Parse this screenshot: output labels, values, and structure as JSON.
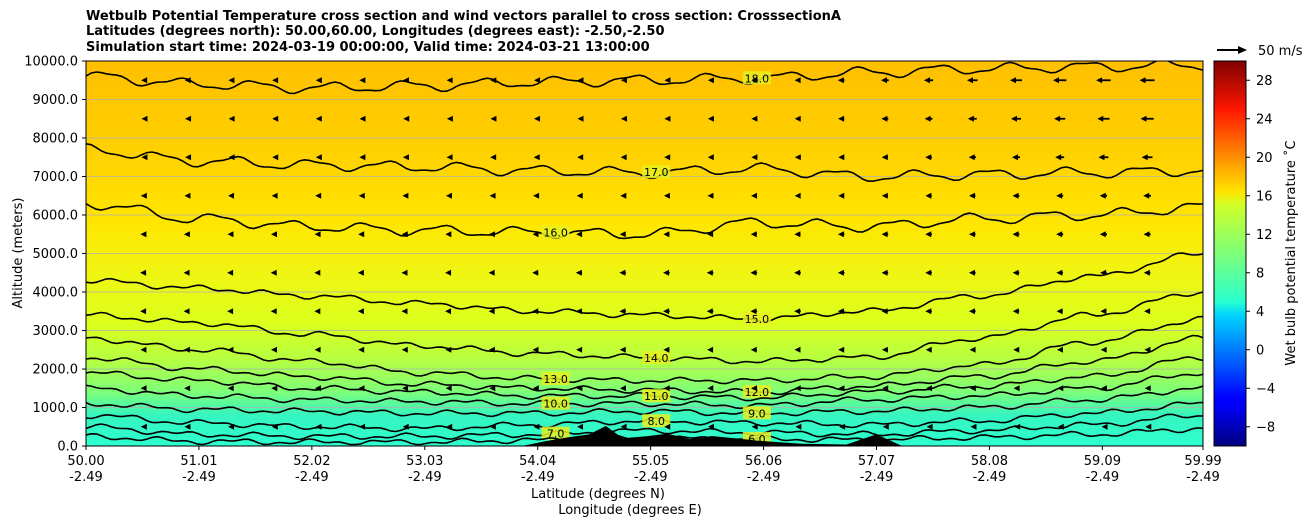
{
  "chart_data": {
    "type": "heatmap",
    "title_lines": [
      "Wetbulb Potential Temperature cross section and wind vectors parallel to cross section: CrosssectionA",
      "Latitudes (degrees north): 50.00,60.00, Longitudes (degrees east): -2.50,-2.50",
      "Simulation start time: 2024-03-19 00:00:00, Valid time: 2024-03-21 13:00:00"
    ],
    "ylabel": "Altitude (meters)",
    "xlabel_lines": [
      "Latitude (degrees N)",
      "Longitude (degrees E)"
    ],
    "xlim": [
      50.0,
      59.99
    ],
    "ylim": [
      0,
      10000
    ],
    "x_ticks": [
      {
        "lat": "50.00",
        "lon": "-2.49",
        "value": 50.0
      },
      {
        "lat": "51.01",
        "lon": "-2.49",
        "value": 51.01
      },
      {
        "lat": "52.02",
        "lon": "-2.49",
        "value": 52.02
      },
      {
        "lat": "53.03",
        "lon": "-2.49",
        "value": 53.03
      },
      {
        "lat": "54.04",
        "lon": "-2.49",
        "value": 54.04
      },
      {
        "lat": "55.05",
        "lon": "-2.49",
        "value": 55.05
      },
      {
        "lat": "56.06",
        "lon": "-2.49",
        "value": 56.06
      },
      {
        "lat": "57.07",
        "lon": "-2.49",
        "value": 57.07
      },
      {
        "lat": "58.08",
        "lon": "-2.49",
        "value": 58.08
      },
      {
        "lat": "59.09",
        "lon": "-2.49",
        "value": 59.09
      },
      {
        "lat": "59.99",
        "lon": "-2.49",
        "value": 59.99
      }
    ],
    "y_ticks": [
      {
        "label": "0.0",
        "value": 0
      },
      {
        "label": "1000.0",
        "value": 1000
      },
      {
        "label": "2000.0",
        "value": 2000
      },
      {
        "label": "3000.0",
        "value": 3000
      },
      {
        "label": "4000.0",
        "value": 4000
      },
      {
        "label": "5000.0",
        "value": 5000
      },
      {
        "label": "6000.0",
        "value": 6000
      },
      {
        "label": "7000.0",
        "value": 7000
      },
      {
        "label": "8000.0",
        "value": 8000
      },
      {
        "label": "9000.0",
        "value": 9000
      },
      {
        "label": "10000.0",
        "value": 10000
      }
    ],
    "grid": "horizontal",
    "colorbar": {
      "label": "Wet bulb potential temperature $^\\circ$C",
      "label_text": "Wet bulb potential temperature ˚C",
      "vmin": -10,
      "vmax": 30,
      "colormap": "jet",
      "ticks": [
        {
          "label": "−8",
          "value": -8
        },
        {
          "label": "−4",
          "value": -4
        },
        {
          "label": "0",
          "value": 0
        },
        {
          "label": "4",
          "value": 4
        },
        {
          "label": "8",
          "value": 8
        },
        {
          "label": "12",
          "value": 12
        },
        {
          "label": "16",
          "value": 16
        },
        {
          "label": "20",
          "value": 20
        },
        {
          "label": "24",
          "value": 24
        },
        {
          "label": "28",
          "value": 28
        }
      ]
    },
    "quiver_key": {
      "label": "50 m/s",
      "speed": 50
    },
    "contour_levels": [
      {
        "value": 18,
        "label": "18.0",
        "heights": [
          9600,
          9400,
          9300,
          9350,
          9450,
          9500,
          9550,
          9700,
          9800,
          9850,
          9900
        ]
      },
      {
        "value": 17,
        "label": "17.0",
        "heights": [
          7700,
          7400,
          7300,
          7250,
          7150,
          7100,
          7200,
          7000,
          7050,
          7100,
          7150
        ]
      },
      {
        "value": 16,
        "label": "16.0",
        "heights": [
          6300,
          5900,
          5700,
          5600,
          5550,
          5500,
          5800,
          5700,
          5900,
          6000,
          6200
        ]
      },
      {
        "value": 15,
        "label": "15.0",
        "heights": [
          4300,
          4100,
          3900,
          3700,
          3500,
          3400,
          3300,
          3500,
          3900,
          4400,
          5000
        ]
      },
      {
        "value": 14,
        "label": "14.0",
        "heights": [
          3400,
          3200,
          2900,
          2600,
          2400,
          2300,
          2200,
          2300,
          2800,
          3400,
          4000
        ]
      },
      {
        "value": 13,
        "label": "13.0",
        "heights": [
          2800,
          2500,
          2200,
          1900,
          1750,
          1700,
          1700,
          1800,
          2100,
          2700,
          3300
        ]
      },
      {
        "value": 12,
        "label": "12.0",
        "heights": [
          2300,
          2000,
          1800,
          1600,
          1500,
          1450,
          1400,
          1550,
          1800,
          2200,
          2800
        ]
      },
      {
        "value": 11,
        "label": "11.0",
        "heights": [
          1900,
          1700,
          1500,
          1400,
          1300,
          1300,
          1250,
          1400,
          1550,
          1800,
          2300
        ]
      },
      {
        "value": 10,
        "label": "10.0",
        "heights": [
          1500,
          1300,
          1200,
          1150,
          1100,
          1100,
          1050,
          1200,
          1300,
          1500,
          1900
        ]
      },
      {
        "value": 9,
        "label": "9.0",
        "heights": [
          1100,
          950,
          900,
          850,
          850,
          900,
          850,
          900,
          1000,
          1200,
          1500
        ]
      },
      {
        "value": 8,
        "label": "8.0",
        "heights": [
          800,
          600,
          500,
          450,
          550,
          650,
          600,
          550,
          650,
          850,
          1100
        ]
      },
      {
        "value": 7,
        "label": "7.0",
        "heights": [
          500,
          300,
          250,
          250,
          300,
          400,
          350,
          300,
          400,
          550,
          800
        ]
      },
      {
        "value": 6,
        "label": "6.0",
        "heights": [
          250,
          120,
          100,
          100,
          150,
          200,
          180,
          160,
          220,
          300,
          450
        ]
      }
    ],
    "wind": {
      "units": "m/s",
      "direction": "southward (pointing toward lower latitude)",
      "rows": [
        {
          "alt": 9500,
          "speed": [
            2,
            3,
            3,
            4,
            4,
            6,
            8,
            12,
            18,
            24,
            26
          ]
        },
        {
          "alt": 8500,
          "speed": [
            1,
            2,
            3,
            3,
            4,
            6,
            8,
            11,
            15,
            20,
            24
          ]
        },
        {
          "alt": 7500,
          "speed": [
            1,
            2,
            3,
            4,
            5,
            7,
            8,
            10,
            12,
            16,
            20
          ]
        },
        {
          "alt": 6500,
          "speed": [
            3,
            4,
            5,
            6,
            7,
            8,
            9,
            10,
            11,
            12,
            14
          ]
        },
        {
          "alt": 5500,
          "speed": [
            4,
            6,
            7,
            8,
            9,
            10,
            10,
            11,
            11,
            12,
            12
          ]
        },
        {
          "alt": 4500,
          "speed": [
            5,
            7,
            8,
            9,
            10,
            11,
            11,
            11,
            11,
            11,
            11
          ]
        },
        {
          "alt": 3500,
          "speed": [
            5,
            7,
            8,
            9,
            10,
            11,
            11,
            11,
            11,
            10,
            10
          ]
        },
        {
          "alt": 2500,
          "speed": [
            4,
            6,
            7,
            8,
            9,
            10,
            10,
            10,
            9,
            9,
            9
          ]
        },
        {
          "alt": 1500,
          "speed": [
            4,
            5,
            6,
            7,
            8,
            9,
            9,
            9,
            8,
            8,
            8
          ]
        },
        {
          "alt": 500,
          "speed": [
            3,
            4,
            4,
            5,
            6,
            7,
            7,
            7,
            6,
            6,
            6
          ]
        }
      ]
    },
    "terrain": {
      "description": "orography",
      "x": [
        53.9,
        54.1,
        54.3,
        54.5,
        54.65,
        54.8,
        55.0,
        55.2,
        55.4,
        55.6,
        56.0,
        56.4,
        56.8,
        57.07,
        57.3
      ],
      "height": [
        0,
        120,
        220,
        300,
        520,
        200,
        250,
        320,
        180,
        260,
        140,
        60,
        40,
        300,
        0
      ]
    }
  }
}
